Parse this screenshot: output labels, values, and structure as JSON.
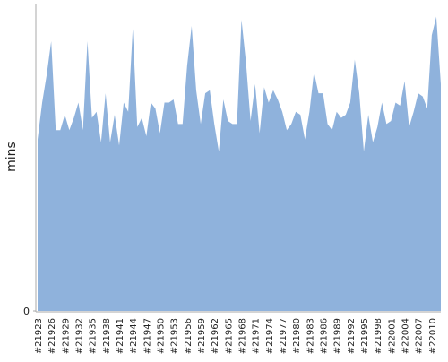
{
  "chart_data": {
    "type": "area",
    "y_label": "mins",
    "color": "#8fb2dc",
    "categories": [
      "#21923",
      null,
      null,
      "#21926",
      null,
      null,
      "#21929",
      null,
      null,
      "#21932",
      null,
      null,
      "#21935",
      null,
      null,
      "#21938",
      null,
      null,
      "#21941",
      null,
      null,
      "#21944",
      null,
      null,
      "#21947",
      null,
      null,
      "#21950",
      null,
      null,
      "#21953",
      null,
      null,
      "#21956",
      null,
      null,
      "#21959",
      null,
      null,
      "#21962",
      null,
      null,
      "#21965",
      null,
      null,
      "#21968",
      null,
      null,
      "#21971",
      null,
      null,
      "#21974",
      null,
      null,
      "#21977",
      null,
      null,
      "#21980",
      null,
      null,
      "#21983",
      null,
      null,
      "#21986",
      null,
      null,
      "#21989",
      null,
      null,
      "#21992",
      null,
      null,
      "#21995",
      null,
      null,
      "#21998",
      null,
      null,
      "#22001",
      null,
      null,
      "#22004",
      null,
      null,
      "#22007",
      null,
      null,
      "#22010",
      null,
      null
    ],
    "values": [
      56,
      68,
      77,
      88,
      59,
      59,
      64,
      59,
      63,
      68,
      59,
      88,
      63,
      65,
      55,
      71,
      55,
      64,
      54,
      68,
      65,
      92,
      60,
      63,
      57,
      68,
      66,
      58,
      68,
      68,
      69,
      61,
      61,
      80,
      93,
      72,
      61,
      71,
      72,
      61,
      52,
      69,
      62,
      61,
      61,
      95,
      81,
      62,
      74,
      58,
      73,
      68,
      72,
      69,
      65,
      59,
      61,
      65,
      64,
      56,
      65,
      78,
      71,
      71,
      61,
      59,
      65,
      63,
      64,
      68,
      82,
      71,
      52,
      64,
      55,
      60,
      68,
      61,
      62,
      68,
      67,
      75,
      60,
      65,
      71,
      70,
      66,
      90,
      96,
      74
    ],
    "ylim": [
      0,
      100
    ],
    "yticks": [
      0
    ]
  }
}
